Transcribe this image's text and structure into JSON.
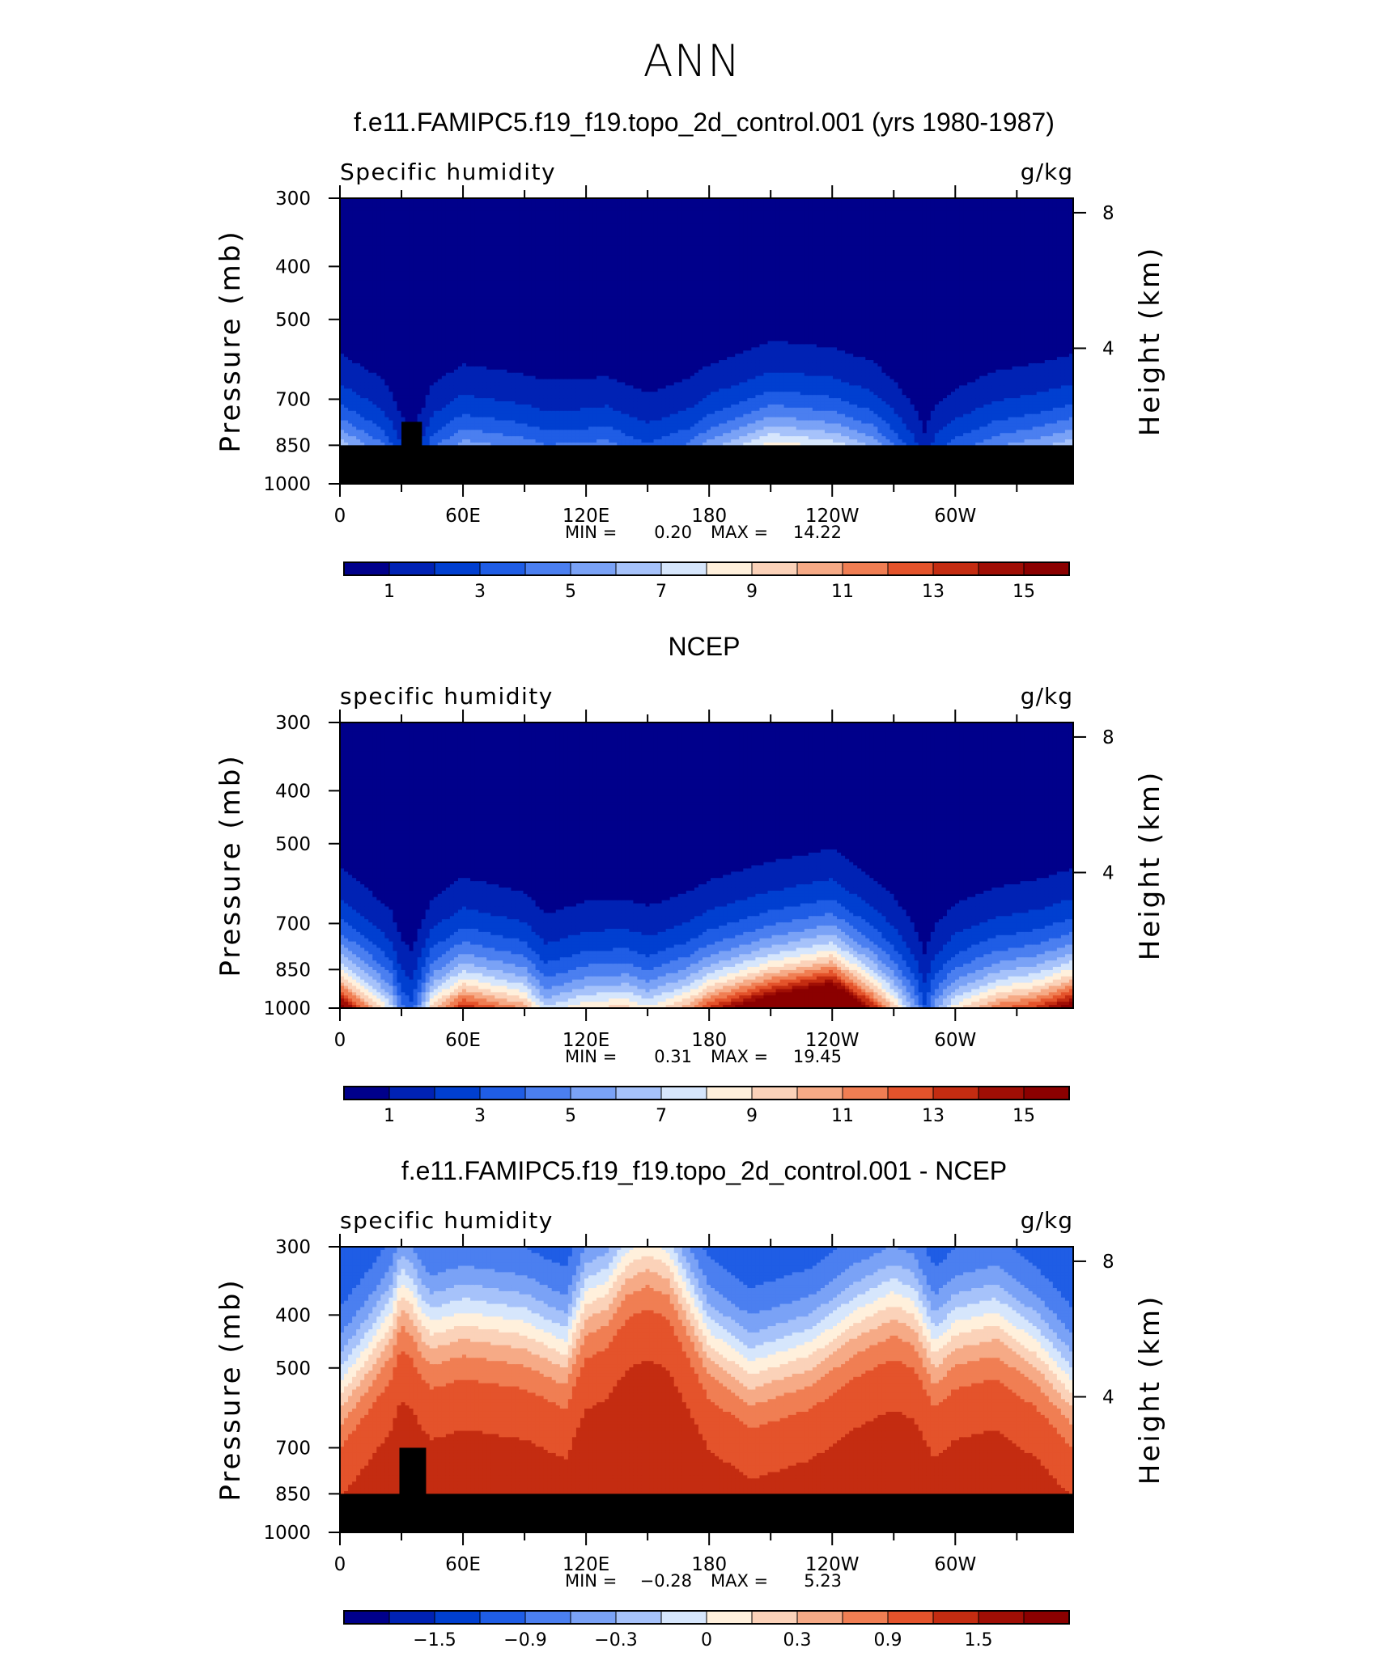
{
  "figure_title": "ANN",
  "chart_data": [
    {
      "type": "heatmap",
      "title": "f.e11.FAMIPC5.f19_f19.topo_2d_control.001 (yrs 1980-1987)",
      "left_label": "Specific humidity",
      "right_label": "g/kg",
      "ylabel": "Pressure (mb)",
      "ylabel_right": "Height (km)",
      "x_ticks": [
        "0",
        "60E",
        "120E",
        "180",
        "120W",
        "60W"
      ],
      "x_tick_values": [
        0,
        60,
        120,
        180,
        240,
        300
      ],
      "xlim": [
        0,
        357.5
      ],
      "y_ticks": [
        "300",
        "400",
        "500",
        "700",
        "850",
        "1000"
      ],
      "y_tick_values": [
        300,
        400,
        500,
        700,
        850,
        1000
      ],
      "ylim": [
        300,
        1000
      ],
      "right_ticks": [
        "8",
        "4"
      ],
      "right_tick_values": [
        8,
        4
      ],
      "min_label": "MIN =",
      "min_value": "0.20",
      "max_label": "MAX =",
      "max_value": "14.22",
      "colorbar_ticks": [
        "1",
        "3",
        "5",
        "7",
        "9",
        "11",
        "13",
        "15"
      ],
      "colorbar_tick_positions": [
        1,
        3,
        5,
        7,
        9,
        11,
        13,
        15
      ],
      "colorbar_palette": [
        "#00008b",
        "#0022b4",
        "#003fd0",
        "#1f5de5",
        "#4b7ff0",
        "#7aa2f6",
        "#a6c2fa",
        "#d6e6fc",
        "#fff0dc",
        "#fbd2b9",
        "#f6aa86",
        "#f07e53",
        "#e4532b",
        "#c42c11",
        "#a00e05",
        "#8b0000"
      ],
      "field": {
        "mode": "abs",
        "lon": [
          0,
          20,
          25,
          30,
          35,
          40,
          45,
          60,
          90,
          100,
          120,
          130,
          140,
          150,
          170,
          180,
          210,
          240,
          260,
          270,
          280,
          285,
          290,
          300,
          320,
          340,
          357.5
        ],
        "lift": [
          0.05,
          0.3,
          0.45,
          0.7,
          0.85,
          0.55,
          0.2,
          0.1,
          0.2,
          0.3,
          0.25,
          0.25,
          0.35,
          0.4,
          0.25,
          0.1,
          -0.15,
          -0.05,
          0.1,
          0.3,
          0.6,
          0.7,
          0.5,
          0.35,
          0.2,
          0.15,
          0.05
        ],
        "surf": [
          1.0,
          1.0,
          1.0,
          1.0,
          1.0,
          0.85,
          0.75,
          0.9,
          0.9,
          0.95,
          0.9,
          0.95,
          0.95,
          0.9,
          0.9,
          0.9,
          0.9,
          0.95,
          0.95,
          0.95,
          1.0,
          0.75,
          0.85,
          0.9,
          0.95,
          1.0,
          1.0
        ]
      },
      "topography": [
        {
          "lon_start": 0,
          "lon_end": 357.5,
          "p_top": 850
        },
        {
          "lon_start": 30,
          "lon_end": 40,
          "p_top": 770
        }
      ]
    },
    {
      "type": "heatmap",
      "title": "NCEP",
      "left_label": "specific humidity",
      "right_label": "g/kg",
      "ylabel": "Pressure (mb)",
      "ylabel_right": "Height (km)",
      "x_ticks": [
        "0",
        "60E",
        "120E",
        "180",
        "120W",
        "60W"
      ],
      "x_tick_values": [
        0,
        60,
        120,
        180,
        240,
        300
      ],
      "xlim": [
        0,
        357.5
      ],
      "y_ticks": [
        "300",
        "400",
        "500",
        "700",
        "850",
        "1000"
      ],
      "y_tick_values": [
        300,
        400,
        500,
        700,
        850,
        1000
      ],
      "ylim": [
        300,
        1000
      ],
      "right_ticks": [
        "8",
        "4"
      ],
      "right_tick_values": [
        8,
        4
      ],
      "min_label": "MIN =",
      "min_value": "0.31",
      "max_label": "MAX =",
      "max_value": "19.45",
      "colorbar_ticks": [
        "1",
        "3",
        "5",
        "7",
        "9",
        "11",
        "13",
        "15"
      ],
      "colorbar_tick_positions": [
        1,
        3,
        5,
        7,
        9,
        11,
        13,
        15
      ],
      "colorbar_palette": [
        "#00008b",
        "#0022b4",
        "#003fd0",
        "#1f5de5",
        "#4b7ff0",
        "#7aa2f6",
        "#a6c2fa",
        "#d6e6fc",
        "#fff0dc",
        "#fbd2b9",
        "#f6aa86",
        "#f07e53",
        "#e4532b",
        "#c42c11",
        "#a00e05",
        "#8b0000"
      ],
      "field": {
        "mode": "abs",
        "lon": [
          0,
          15,
          25,
          30,
          35,
          40,
          45,
          60,
          90,
          100,
          105,
          120,
          140,
          150,
          170,
          180,
          210,
          240,
          260,
          270,
          280,
          285,
          290,
          300,
          320,
          340,
          357.5
        ],
        "lift": [
          0.05,
          0.3,
          0.5,
          0.8,
          0.9,
          0.5,
          0.2,
          0.1,
          0.25,
          0.5,
          0.45,
          0.35,
          0.35,
          0.4,
          0.25,
          0.1,
          -0.1,
          -0.2,
          0.1,
          0.3,
          0.6,
          0.75,
          0.55,
          0.35,
          0.2,
          0.15,
          0.05
        ],
        "surf": [
          1.2,
          1.2,
          1.2,
          1.2,
          1.15,
          1.0,
          0.9,
          1.1,
          1.1,
          1.15,
          1.1,
          1.1,
          1.15,
          1.1,
          1.1,
          1.05,
          1.05,
          1.1,
          1.1,
          1.1,
          1.1,
          0.85,
          1.0,
          1.05,
          1.1,
          1.15,
          1.2
        ]
      },
      "topography": []
    },
    {
      "type": "heatmap",
      "title": "f.e11.FAMIPC5.f19_f19.topo_2d_control.001 - NCEP",
      "left_label": "specific humidity",
      "right_label": "g/kg",
      "ylabel": "Pressure (mb)",
      "ylabel_right": "Height (km)",
      "x_ticks": [
        "0",
        "60E",
        "120E",
        "180",
        "120W",
        "60W"
      ],
      "x_tick_values": [
        0,
        60,
        120,
        180,
        240,
        300
      ],
      "xlim": [
        0,
        357.5
      ],
      "y_ticks": [
        "300",
        "400",
        "500",
        "700",
        "850",
        "1000"
      ],
      "y_tick_values": [
        300,
        400,
        500,
        700,
        850,
        1000
      ],
      "ylim": [
        300,
        1000
      ],
      "right_ticks": [
        "8",
        "4"
      ],
      "right_tick_values": [
        8,
        4
      ],
      "min_label": "MIN =",
      "min_value": "−0.28",
      "max_label": "MAX =",
      "max_value": "5.23",
      "colorbar_ticks": [
        "−1.5",
        "−0.9",
        "−0.3",
        "0",
        "0.3",
        "0.9",
        "1.5"
      ],
      "colorbar_tick_positions": [
        2,
        4,
        6,
        8,
        10,
        12,
        14
      ],
      "colorbar_palette": [
        "#00008b",
        "#0022b4",
        "#003fd0",
        "#1f5de5",
        "#4b7ff0",
        "#7aa2f6",
        "#a6c2fa",
        "#d6e6fc",
        "#fff0dc",
        "#fbd2b9",
        "#f6aa86",
        "#f07e53",
        "#e4532b",
        "#c42c11",
        "#a00e05",
        "#8b0000"
      ],
      "field": {
        "mode": "diff",
        "lon": [
          0,
          15,
          25,
          30,
          35,
          40,
          45,
          60,
          90,
          110,
          120,
          130,
          140,
          150,
          160,
          170,
          180,
          200,
          230,
          250,
          270,
          280,
          290,
          300,
          320,
          340,
          357.5
        ],
        "lift": [
          0.1,
          0.3,
          0.45,
          0.6,
          0.55,
          0.45,
          0.4,
          0.45,
          0.4,
          0.3,
          0.55,
          0.6,
          0.75,
          0.8,
          0.75,
          0.55,
          0.35,
          0.2,
          0.3,
          0.45,
          0.55,
          0.5,
          0.3,
          0.4,
          0.45,
          0.3,
          0.1
        ],
        "surf": [
          1,
          1,
          1,
          1,
          1,
          1,
          1,
          1,
          1,
          1,
          1,
          1,
          1,
          1,
          1,
          1,
          1,
          1,
          1,
          1,
          1,
          1,
          1,
          1,
          1,
          1,
          1
        ]
      },
      "topography": [
        {
          "lon_start": 0,
          "lon_end": 357.5,
          "p_top": 850
        },
        {
          "lon_start": 29,
          "lon_end": 42,
          "p_top": 700
        }
      ]
    }
  ]
}
